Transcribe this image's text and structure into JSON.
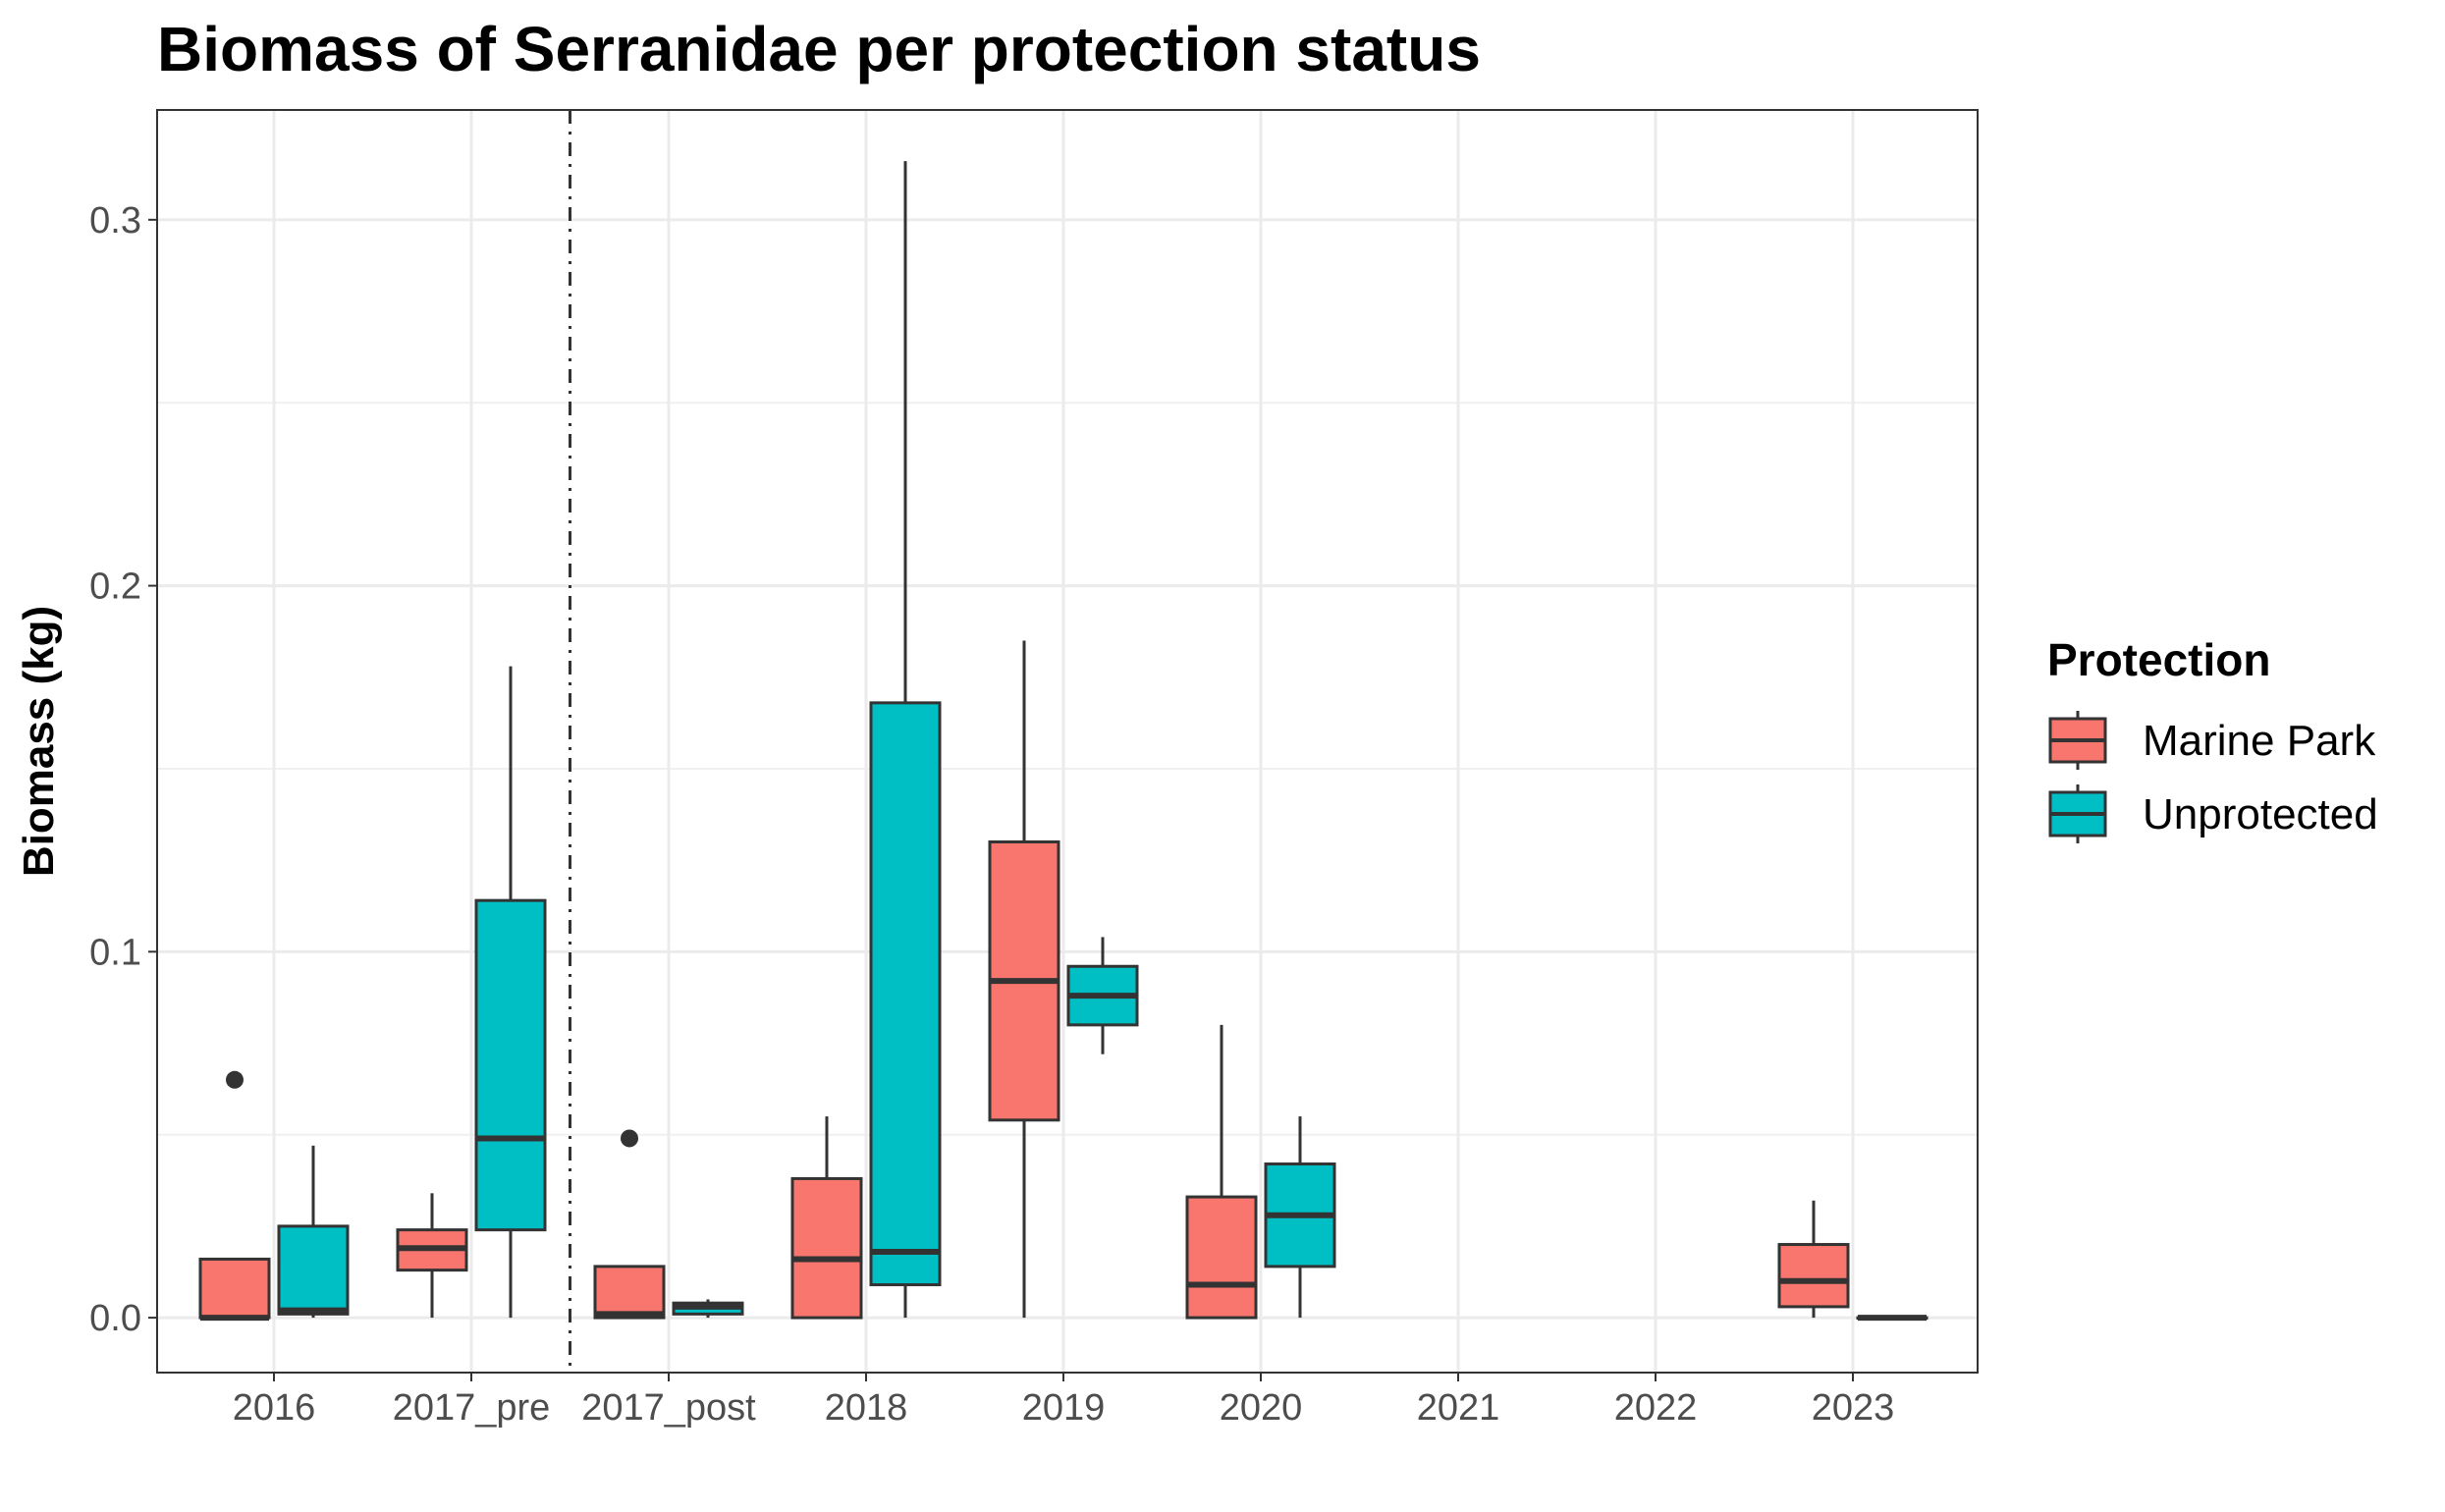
{
  "chart_data": {
    "type": "boxplot",
    "title": "Biomass of Serranidae per protection status",
    "xlabel": "",
    "ylabel": "Biomass (kg)",
    "ylim": [
      -0.015,
      0.33
    ],
    "y_ticks": [
      "0.0",
      "0.1",
      "0.2",
      "0.3"
    ],
    "y_tick_values": [
      0.0,
      0.1,
      0.2,
      0.3
    ],
    "grid": true,
    "categories": [
      "2016",
      "2017_pre",
      "2017_post",
      "2018",
      "2019",
      "2020",
      "2021",
      "2022",
      "2023"
    ],
    "reference_line": {
      "between": [
        "2017_pre",
        "2017_post"
      ],
      "style": "dashed"
    },
    "legend": {
      "title": "Protection",
      "placement": "right"
    },
    "colors": {
      "Marine Park": "#F8766D",
      "Unprotected": "#00BFC4",
      "outline": "#333333"
    },
    "series": [
      {
        "name": "Marine Park",
        "boxes": [
          {
            "category": "2016",
            "min": 0.0,
            "q1": 0.0,
            "median": 0.0,
            "q3": 0.016,
            "max": 0.016,
            "outliers": [
              0.065
            ]
          },
          {
            "category": "2017_pre",
            "min": 0.0,
            "q1": 0.013,
            "median": 0.019,
            "q3": 0.024,
            "max": 0.034,
            "outliers": []
          },
          {
            "category": "2017_post",
            "min": 0.0,
            "q1": 0.0,
            "median": 0.001,
            "q3": 0.014,
            "max": 0.014,
            "outliers": [
              0.049
            ]
          },
          {
            "category": "2018",
            "min": 0.0,
            "q1": 0.0,
            "median": 0.016,
            "q3": 0.038,
            "max": 0.055,
            "outliers": []
          },
          {
            "category": "2019",
            "min": 0.0,
            "q1": 0.054,
            "median": 0.092,
            "q3": 0.13,
            "max": 0.185,
            "outliers": []
          },
          {
            "category": "2020",
            "min": 0.0,
            "q1": 0.0,
            "median": 0.009,
            "q3": 0.033,
            "max": 0.08,
            "outliers": []
          },
          {
            "category": "2023",
            "min": 0.0,
            "q1": 0.003,
            "median": 0.01,
            "q3": 0.02,
            "max": 0.032,
            "outliers": []
          }
        ]
      },
      {
        "name": "Unprotected",
        "boxes": [
          {
            "category": "2016",
            "min": 0.0,
            "q1": 0.001,
            "median": 0.002,
            "q3": 0.025,
            "max": 0.047,
            "outliers": []
          },
          {
            "category": "2017_pre",
            "min": 0.0,
            "q1": 0.024,
            "median": 0.049,
            "q3": 0.114,
            "max": 0.178,
            "outliers": []
          },
          {
            "category": "2017_post",
            "min": 0.0,
            "q1": 0.001,
            "median": 0.003,
            "q3": 0.004,
            "max": 0.005,
            "outliers": []
          },
          {
            "category": "2018",
            "min": 0.0,
            "q1": 0.009,
            "median": 0.018,
            "q3": 0.168,
            "max": 0.316,
            "outliers": []
          },
          {
            "category": "2019",
            "min": 0.072,
            "q1": 0.08,
            "median": 0.088,
            "q3": 0.096,
            "max": 0.104,
            "outliers": []
          },
          {
            "category": "2020",
            "min": 0.0,
            "q1": 0.014,
            "median": 0.028,
            "q3": 0.042,
            "max": 0.055,
            "outliers": []
          },
          {
            "category": "2023",
            "min": 0.0,
            "q1": 0.0,
            "median": 0.0,
            "q3": 0.0,
            "max": 0.0,
            "outliers": []
          }
        ]
      }
    ]
  }
}
